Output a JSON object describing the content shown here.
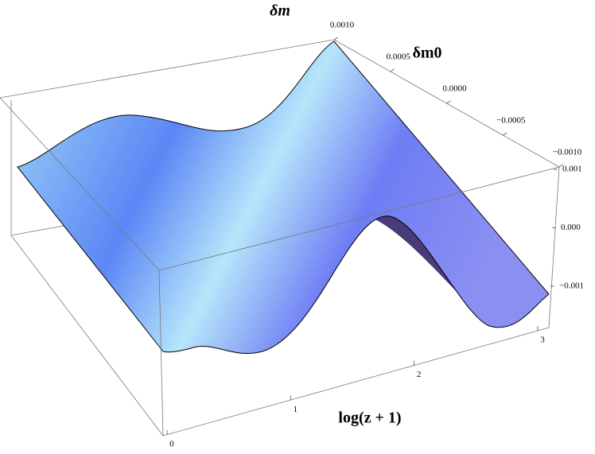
{
  "chart_data": {
    "type": "surface3d",
    "x_label": "log(z + 1)",
    "y_label": "δm0",
    "z_label": "δm",
    "xlim": [
      0,
      3
    ],
    "xticks": [
      0,
      1,
      2,
      3
    ],
    "ylim": [
      0.001,
      -0.001
    ],
    "yticks": [
      {
        "value": 0.001,
        "label": "0.0010"
      },
      {
        "value": 0.0005,
        "label": "0.0005"
      },
      {
        "value": 0,
        "label": "0.0000"
      },
      {
        "value": -0.0005,
        "label": "−0.0005"
      },
      {
        "value": -0.001,
        "label": "−0.0010"
      }
    ],
    "zlim": [
      -0.001,
      0.001
    ],
    "zticks": [
      {
        "value": 0.001,
        "label": "0.001"
      },
      {
        "value": 0,
        "label": "0.000"
      },
      {
        "value": -0.001,
        "label": "−0.001"
      }
    ]
  }
}
